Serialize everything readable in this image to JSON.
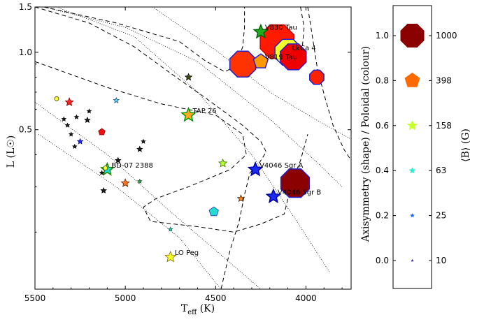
{
  "chart_data": {
    "type": "scatter",
    "title": "",
    "xlabel": "T_eff (K)",
    "xlabel_main": "T",
    "xlabel_sub": "eff",
    "xlabel_unit": " (K)",
    "ylabel": "L (L☉)",
    "y_scale": "log",
    "x_reversed": true,
    "xlim": [
      5500,
      3750
    ],
    "ylim": [
      0.12,
      1.5
    ],
    "xticks": [
      5500,
      5000,
      4500,
      4000
    ],
    "xtick_labels": [
      "5500",
      "5000",
      "4500",
      "4000"
    ],
    "yticks": [
      1.5,
      1.0,
      0.5
    ],
    "ytick_labels": [
      "1.5",
      "1.0",
      "0.5"
    ],
    "colorbar": {
      "label": "Axisymmetry (shape) / Poloidal (colour)",
      "ticks": [
        0.0,
        0.2,
        0.4,
        0.6,
        0.8,
        1.0
      ],
      "tick_labels": [
        "0.0",
        "0.2",
        "0.4",
        "0.6",
        "0.8",
        "1.0"
      ]
    },
    "size_legend": {
      "label": "⟨B⟩ (G)",
      "entries": [
        {
          "value": "1000",
          "color": "#8b0000",
          "shape": "octagon",
          "level": 1.0
        },
        {
          "value": "398",
          "color": "#ff6a00",
          "shape": "pentagon",
          "level": 0.8
        },
        {
          "value": "158",
          "color": "#c8ff2e",
          "shape": "star",
          "level": 0.6
        },
        {
          "value": "63",
          "color": "#22f0d0",
          "shape": "star",
          "level": 0.4
        },
        {
          "value": "25",
          "color": "#1a6cff",
          "shape": "star",
          "level": 0.2
        },
        {
          "value": "10",
          "color": "#3333aa",
          "shape": "star",
          "level": 0.0
        }
      ]
    },
    "points": [
      {
        "name": "V830 Tau",
        "teff": 4250,
        "lum": 1.2,
        "size": 10,
        "shape": "star",
        "color": "#22aa22",
        "edge": "#006600"
      },
      {
        "name": "LkCa 4",
        "teff": 4100,
        "lum": 1.0,
        "size": 20,
        "shape": "octagon",
        "color": "#f2ff2a",
        "edge": "#2222cc"
      },
      {
        "name": "V819 Tau",
        "teff": 4250,
        "lum": 0.92,
        "size": 11,
        "shape": "pentagon",
        "color": "#ff9900",
        "edge": "#2222cc"
      },
      {
        "name": "TAP 26",
        "teff": 4650,
        "lum": 0.57,
        "size": 10,
        "shape": "star",
        "color": "#ffaa22",
        "edge": "#009900"
      },
      {
        "name": "V4046 Sgr A",
        "teff": 4280,
        "lum": 0.35,
        "size": 10,
        "shape": "star",
        "color": "#1a2aee",
        "edge": "#0000aa"
      },
      {
        "name": "V4046 Sgr B",
        "teff": 4180,
        "lum": 0.275,
        "size": 10,
        "shape": "star",
        "color": "#1a2aee",
        "edge": "#0000aa"
      },
      {
        "name": "BD-07 2388",
        "teff": 5100,
        "lum": 0.35,
        "size": 9,
        "shape": "star",
        "color": "#22ddcc",
        "edge": "#228800"
      },
      {
        "name": "LO Peg",
        "teff": 4750,
        "lum": 0.16,
        "size": 8,
        "shape": "star",
        "color": "#f2ff2a",
        "edge": "#886600"
      },
      {
        "name": "",
        "teff": 4350,
        "lum": 0.9,
        "size": 20,
        "shape": "octagon",
        "color": "#ff3300",
        "edge": "#2222cc"
      },
      {
        "name": "",
        "teff": 4160,
        "lum": 1.1,
        "size": 26,
        "shape": "octagon",
        "color": "#ff1a00",
        "edge": "#cc0000"
      },
      {
        "name": "",
        "teff": 4070,
        "lum": 0.96,
        "size": 20,
        "shape": "octagon",
        "color": "#ee0000",
        "edge": "#2222cc"
      },
      {
        "name": "",
        "teff": 3940,
        "lum": 0.8,
        "size": 11,
        "shape": "octagon",
        "color": "#ff2200",
        "edge": "#2222cc"
      },
      {
        "name": "",
        "teff": 4060,
        "lum": 0.31,
        "size": 22,
        "shape": "octagon",
        "color": "#8b0000",
        "edge": "#2222cc"
      },
      {
        "name": "",
        "teff": 4650,
        "lum": 0.8,
        "size": 5,
        "shape": "star",
        "color": "#445500",
        "edge": "#000000"
      },
      {
        "name": "",
        "teff": 5310,
        "lum": 0.64,
        "size": 6,
        "shape": "star",
        "color": "#ff2222",
        "edge": "#880000"
      },
      {
        "name": "",
        "teff": 5050,
        "lum": 0.65,
        "size": 4,
        "shape": "star",
        "color": "#66ddff",
        "edge": "#225577"
      },
      {
        "name": "",
        "teff": 5380,
        "lum": 0.66,
        "size": 3,
        "shape": "circle",
        "color": "#ffff33",
        "edge": "#444400"
      },
      {
        "name": "",
        "teff": 5130,
        "lum": 0.49,
        "size": 5,
        "shape": "pentagon",
        "color": "#ee1111",
        "edge": "#880000"
      },
      {
        "name": "",
        "teff": 5250,
        "lum": 0.45,
        "size": 4,
        "shape": "star",
        "color": "#2233ff",
        "edge": "#000088"
      },
      {
        "name": "",
        "teff": 5040,
        "lum": 0.38,
        "size": 4,
        "shape": "star",
        "color": "#222222",
        "edge": "#000000"
      },
      {
        "name": "",
        "teff": 4920,
        "lum": 0.42,
        "size": 4,
        "shape": "star",
        "color": "#222222",
        "edge": "#000000"
      },
      {
        "name": "",
        "teff": 4460,
        "lum": 0.37,
        "size": 6,
        "shape": "star",
        "color": "#b8ff33",
        "edge": "#337700"
      },
      {
        "name": "",
        "teff": 5000,
        "lum": 0.31,
        "size": 6,
        "shape": "star",
        "color": "#ff7722",
        "edge": "#662200"
      },
      {
        "name": "",
        "teff": 4920,
        "lum": 0.315,
        "size": 3,
        "shape": "star",
        "color": "#33aa55",
        "edge": "#115522"
      },
      {
        "name": "",
        "teff": 5120,
        "lum": 0.29,
        "size": 4,
        "shape": "star",
        "color": "#222222",
        "edge": "#000000"
      },
      {
        "name": "",
        "teff": 4360,
        "lum": 0.27,
        "size": 5,
        "shape": "star",
        "color": "#ff8822",
        "edge": "#442200"
      },
      {
        "name": "",
        "teff": 4510,
        "lum": 0.24,
        "size": 7,
        "shape": "pentagon",
        "color": "#22ddcc",
        "edge": "#2233cc"
      },
      {
        "name": "",
        "teff": 4750,
        "lum": 0.205,
        "size": 3,
        "shape": "star",
        "color": "#22ddcc",
        "edge": "#116655"
      },
      {
        "name": "",
        "teff": 5340,
        "lum": 0.55,
        "size": 3,
        "shape": "star",
        "color": "#222222",
        "edge": "#000000"
      },
      {
        "name": "",
        "teff": 5320,
        "lum": 0.52,
        "size": 3,
        "shape": "star",
        "color": "#222222",
        "edge": "#000000"
      },
      {
        "name": "",
        "teff": 5270,
        "lum": 0.56,
        "size": 3,
        "shape": "star",
        "color": "#222222",
        "edge": "#000000"
      },
      {
        "name": "",
        "teff": 5210,
        "lum": 0.545,
        "size": 4,
        "shape": "star",
        "color": "#222222",
        "edge": "#000000"
      },
      {
        "name": "",
        "teff": 5300,
        "lum": 0.48,
        "size": 3,
        "shape": "star",
        "color": "#222222",
        "edge": "#000000"
      },
      {
        "name": "",
        "teff": 5280,
        "lum": 0.43,
        "size": 3,
        "shape": "star",
        "color": "#222222",
        "edge": "#000000"
      },
      {
        "name": "",
        "teff": 5200,
        "lum": 0.59,
        "size": 3,
        "shape": "star",
        "color": "#222222",
        "edge": "#000000"
      },
      {
        "name": "",
        "teff": 5110,
        "lum": 0.355,
        "size": 3,
        "shape": "circle",
        "color": "#ffff33",
        "edge": "#444400"
      },
      {
        "name": "",
        "teff": 5130,
        "lum": 0.34,
        "size": 3,
        "shape": "star",
        "color": "#222222",
        "edge": "#000000"
      },
      {
        "name": "",
        "teff": 4900,
        "lum": 0.45,
        "size": 3,
        "shape": "star",
        "color": "#222222",
        "edge": "#000000"
      }
    ],
    "dotted_isochrones": [
      [
        [
          5450,
          1.5
        ],
        [
          5000,
          1.25
        ],
        [
          4600,
          0.92
        ],
        [
          4200,
          0.55
        ],
        [
          3950,
          0.38
        ],
        [
          3800,
          0.3
        ]
      ],
      [
        [
          5380,
          1.5
        ],
        [
          4950,
          1.15
        ],
        [
          4600,
          0.7
        ],
        [
          4300,
          0.4
        ],
        [
          4050,
          0.22
        ],
        [
          3870,
          0.14
        ]
      ],
      [
        [
          5480,
          0.48
        ],
        [
          5050,
          0.3
        ],
        [
          4700,
          0.19
        ],
        [
          4470,
          0.12
        ]
      ],
      [
        [
          5500,
          0.64
        ],
        [
          5100,
          0.4
        ],
        [
          4750,
          0.24
        ],
        [
          4500,
          0.17
        ],
        [
          4250,
          0.12
        ]
      ],
      [
        [
          4850,
          1.5
        ],
        [
          4500,
          1.02
        ],
        [
          4200,
          0.7
        ],
        [
          3950,
          0.55
        ],
        [
          3750,
          0.46
        ]
      ]
    ],
    "dashed_tracks": [
      [
        [
          5500,
          0.92
        ],
        [
          5100,
          0.73
        ],
        [
          4800,
          0.63
        ],
        [
          4500,
          0.57
        ],
        [
          4350,
          0.48
        ],
        [
          4330,
          0.4
        ],
        [
          4420,
          0.35
        ],
        [
          4650,
          0.3
        ],
        [
          4830,
          0.27
        ],
        [
          4900,
          0.25
        ],
        [
          4860,
          0.22
        ],
        [
          4600,
          0.21
        ],
        [
          4400,
          0.2
        ],
        [
          4250,
          0.215
        ],
        [
          4120,
          0.235
        ],
        [
          4100,
          0.27
        ],
        [
          4080,
          0.31
        ],
        [
          4030,
          0.38
        ],
        [
          3990,
          0.48
        ]
      ],
      [
        [
          5450,
          1.5
        ],
        [
          5050,
          1.3
        ],
        [
          4700,
          1.1
        ],
        [
          4560,
          0.93
        ],
        [
          4450,
          0.84
        ],
        [
          4390,
          0.88
        ],
        [
          4350,
          1.05
        ],
        [
          4340,
          1.25
        ],
        [
          4340,
          1.5
        ]
      ],
      [
        [
          5500,
          1.5
        ],
        [
          5200,
          1.3
        ],
        [
          4950,
          1.05
        ],
        [
          4750,
          0.83
        ],
        [
          4550,
          0.66
        ],
        [
          4350,
          0.52
        ],
        [
          4250,
          0.45
        ],
        [
          4220,
          0.41
        ],
        [
          4260,
          0.37
        ],
        [
          4310,
          0.34
        ],
        [
          4340,
          0.28
        ],
        [
          4370,
          0.22
        ],
        [
          4420,
          0.17
        ],
        [
          4470,
          0.12
        ]
      ],
      [
        [
          3990,
          1.5
        ],
        [
          3960,
          1.1
        ],
        [
          3935,
          0.85
        ],
        [
          3890,
          0.65
        ],
        [
          3850,
          0.52
        ],
        [
          3790,
          0.42
        ],
        [
          3750,
          0.38
        ]
      ],
      [
        [
          4030,
          1.5
        ],
        [
          4010,
          1.25
        ],
        [
          4020,
          1.05
        ]
      ]
    ]
  }
}
